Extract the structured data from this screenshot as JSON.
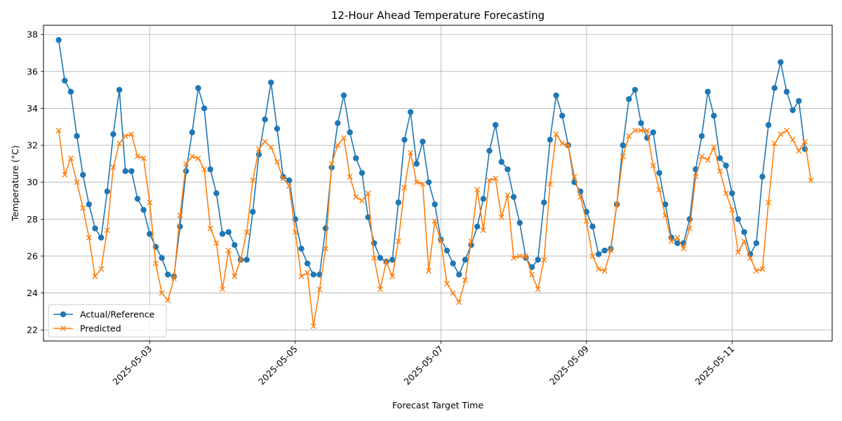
{
  "chart_data": {
    "type": "line",
    "title": "12-Hour Ahead Temperature Forecasting",
    "xlabel": "Forecast Target Time",
    "ylabel": "Temperature (°C)",
    "x_start": "2025-05-01T18:00",
    "x_step_hours": 2,
    "x_range": [
      "2025-05-01T13:00",
      "2025-05-12T09:00"
    ],
    "ylim": [
      21.4,
      38.5
    ],
    "xticks": [
      "2025-05-03",
      "2025-05-05",
      "2025-05-07",
      "2025-05-09",
      "2025-05-11"
    ],
    "yticks": [
      22,
      24,
      26,
      28,
      30,
      32,
      34,
      36,
      38
    ],
    "grid": true,
    "legend": "lower-left",
    "series": [
      {
        "name": "Actual/Reference",
        "color": "#1f77b4",
        "marker": "circle",
        "values": [
          37.7,
          35.5,
          34.9,
          32.5,
          30.4,
          28.8,
          27.5,
          27.0,
          29.5,
          32.6,
          35.0,
          30.6,
          30.6,
          29.1,
          28.5,
          27.2,
          26.5,
          25.9,
          25.0,
          24.9,
          27.6,
          30.6,
          32.7,
          35.1,
          34.0,
          30.7,
          29.4,
          27.2,
          27.3,
          26.6,
          25.8,
          25.8,
          28.4,
          31.5,
          33.4,
          35.4,
          32.9,
          30.3,
          30.1,
          28.0,
          26.4,
          25.6,
          25.0,
          25.0,
          27.5,
          30.8,
          33.2,
          34.7,
          32.7,
          31.3,
          30.5,
          28.1,
          26.7,
          25.9,
          25.7,
          25.8,
          28.9,
          32.3,
          33.8,
          31.0,
          32.2,
          30.0,
          28.8,
          26.9,
          26.3,
          25.6,
          25.0,
          25.8,
          26.6,
          27.6,
          29.1,
          31.7,
          33.1,
          31.1,
          30.7,
          29.2,
          27.8,
          25.9,
          25.4,
          25.8,
          28.9,
          32.3,
          34.7,
          33.6,
          32.0,
          30.0,
          29.5,
          28.4,
          27.6,
          26.1,
          26.3,
          26.4,
          28.8,
          32.0,
          34.5,
          35.0,
          33.2,
          32.4,
          32.7,
          30.5,
          28.8,
          27.0,
          26.7,
          26.7,
          28.0,
          30.7,
          32.5,
          34.9,
          33.6,
          31.3,
          30.9,
          29.4,
          28.0,
          27.3,
          26.1,
          26.7,
          30.3,
          33.1,
          35.1,
          36.5,
          34.9,
          33.9,
          34.4,
          31.8
        ]
      },
      {
        "name": "Predicted",
        "color": "#ff7f0e",
        "marker": "x",
        "values": [
          32.8,
          30.4,
          31.3,
          30.0,
          28.6,
          27.0,
          24.9,
          25.3,
          27.4,
          30.8,
          32.1,
          32.5,
          32.6,
          31.4,
          31.3,
          28.9,
          25.6,
          24.0,
          23.6,
          24.8,
          28.2,
          31.0,
          31.4,
          31.3,
          30.7,
          27.5,
          26.7,
          24.2,
          26.3,
          24.9,
          25.8,
          27.3,
          30.1,
          31.8,
          32.2,
          31.9,
          31.1,
          30.2,
          29.8,
          27.3,
          24.9,
          25.1,
          22.2,
          24.2,
          26.4,
          31.0,
          32.0,
          32.4,
          30.3,
          29.2,
          29.0,
          29.4,
          25.9,
          24.2,
          25.7,
          24.9,
          26.8,
          29.7,
          31.6,
          30.0,
          29.9,
          25.2,
          27.9,
          26.8,
          24.5,
          24.0,
          23.5,
          24.7,
          26.8,
          29.6,
          27.4,
          30.1,
          30.2,
          28.1,
          29.3,
          25.9,
          26.0,
          26.0,
          25.0,
          24.2,
          25.8,
          29.9,
          32.6,
          32.1,
          32.0,
          30.3,
          29.2,
          27.9,
          26.0,
          25.3,
          25.2,
          26.3,
          28.8,
          31.4,
          32.5,
          32.8,
          32.8,
          32.8,
          30.9,
          29.6,
          28.2,
          26.8,
          27.0,
          26.4,
          27.5,
          30.3,
          31.4,
          31.2,
          31.9,
          30.6,
          29.4,
          28.5,
          26.2,
          26.8,
          25.9,
          25.2,
          25.3,
          28.9,
          32.1,
          32.6,
          32.8,
          32.3,
          31.7,
          32.2,
          30.1
        ]
      }
    ]
  }
}
